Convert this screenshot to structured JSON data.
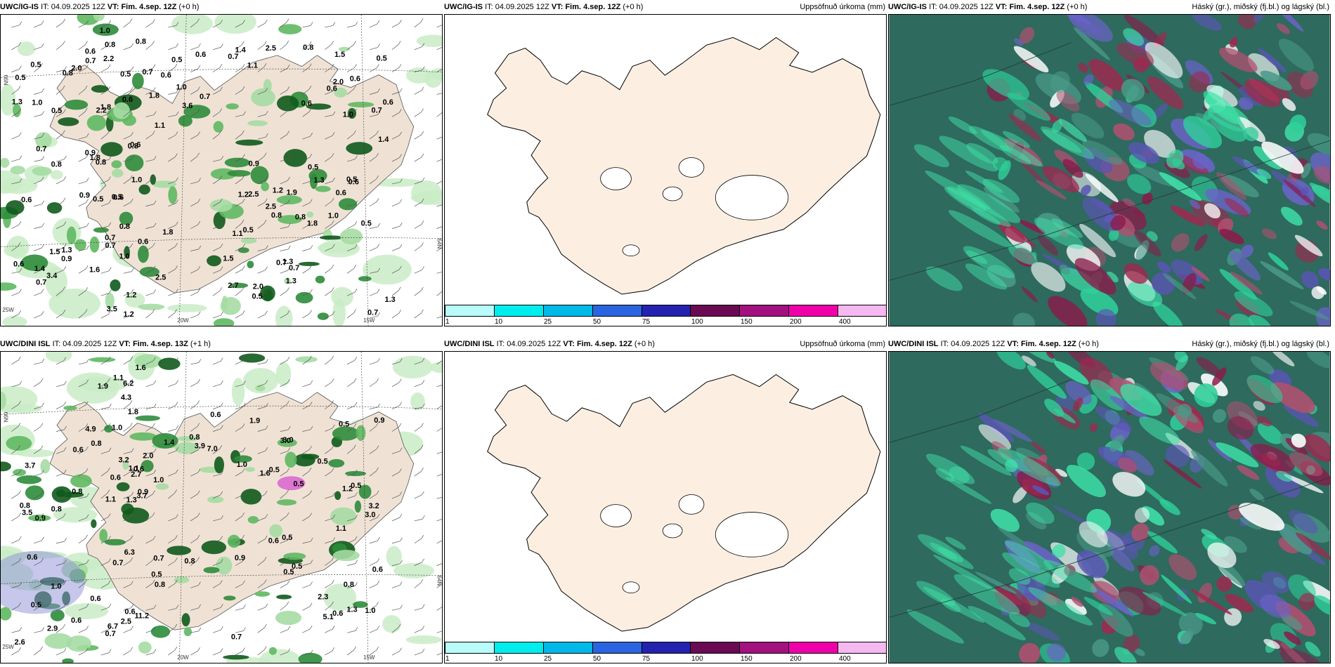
{
  "panels": [
    {
      "model": "UWC/IG-IS",
      "it_label": "IT:",
      "it_value": "04.09.2025 12Z",
      "vt_label": "VT:",
      "vt_value": "Fim. 4.sep. 12Z",
      "lead": "(+0 h)",
      "right_title": "",
      "type": "precip",
      "lat_labels": [
        "66N",
        "64N"
      ],
      "lon_labels": [
        "25W",
        "20W",
        "15W"
      ],
      "values": [
        "1.0",
        "1.0",
        "0.8",
        "1.4",
        "1.0",
        "0.5",
        "0.7",
        "0.6",
        "0.7",
        "1.3",
        "0.6",
        "0.8",
        "0.5",
        "0.6",
        "0.5",
        "1.0",
        "0.8",
        "0.5",
        "0.9",
        "0.6",
        "1.8",
        "0.7",
        "1.3",
        "0.5",
        "0.7",
        "0.8",
        "0.6",
        "3.6",
        "2.2",
        "3.4",
        "2.5",
        "2.0",
        "2.5",
        "1.2",
        "0.5",
        "1.3",
        "0.9",
        "0.5",
        "1.4",
        "1.1",
        "0.7",
        "0.6",
        "0.9",
        "0.7",
        "0.8",
        "0.8",
        "0.6",
        "0.7",
        "1.5",
        "1.2",
        "2.0",
        "1.1",
        "0.6",
        "0.7",
        "2.5",
        "0.7",
        "0.5",
        "1.2",
        "1.8",
        "1.3",
        "1.1",
        "1.8",
        "2.5",
        "1.5",
        "0.6",
        "0.8",
        "2.7",
        "0.8",
        "0.7",
        "0.5",
        "2.0",
        "1.0",
        "1.9",
        "1.2",
        "0.5",
        "0.7",
        "0.6",
        "3.5",
        "1.0",
        "2.2",
        "0.8",
        "0.6",
        "0.9",
        "1.4",
        "1.3",
        "1.5",
        "0.6",
        "1.8",
        "0.6",
        "0.5",
        "0.6",
        "0.5",
        "0.5",
        "0.6",
        "1.0",
        "1.8",
        "1.3",
        "0.7",
        "0.8",
        "1.6"
      ]
    },
    {
      "model": "UWC/IG-IS",
      "it_label": "IT:",
      "it_value": "04.09.2025 12Z",
      "vt_label": "VT:",
      "vt_value": "Fim. 4.sep. 12Z",
      "lead": "(+0 h)",
      "right_title": "Uppsöfnuð úrkoma (mm)",
      "type": "accum",
      "colorbar": {
        "colors": [
          "#b8fbfb",
          "#00eded",
          "#00b9e8",
          "#2a64e0",
          "#2323b0",
          "#6a0a52",
          "#a3107f",
          "#ef00a8",
          "#f5b8f0"
        ],
        "labels": [
          "1",
          "10",
          "25",
          "50",
          "75",
          "100",
          "150",
          "200",
          "400"
        ]
      }
    },
    {
      "model": "UWC/IG-IS",
      "it_label": "IT:",
      "it_value": "04.09.2025 12Z",
      "vt_label": "VT:",
      "vt_value": "Fim. 4.sep. 12Z",
      "lead": "(+0 h)",
      "right_title": "Háský (gr.), miðský (fj.bl.) og lágský (bl.)",
      "type": "cloud"
    },
    {
      "model": "UWC/DINI ISL",
      "it_label": "IT:",
      "it_value": "04.09.2025 12Z",
      "vt_label": "VT:",
      "vt_value": "Fim. 4.sep. 13Z",
      "lead": "(+1 h)",
      "right_title": "",
      "type": "precip",
      "lat_labels": [
        "66N",
        "64N"
      ],
      "lon_labels": [
        "25W",
        "20W",
        "15W"
      ],
      "values": [
        "0.9",
        "0.6",
        "0.5",
        "0.6",
        "0.8",
        "0.6",
        "0.9",
        "1.0",
        "0.6",
        "0.5",
        "0.5",
        "1.6",
        "1.0",
        "1.1",
        "0.6",
        "1.4",
        "0.5",
        "0.6",
        "0.5",
        "0.7",
        "0.8",
        "0.5",
        "0.8",
        "0.5",
        "1.8",
        "0.8",
        "1.0",
        "0.5",
        "1.2",
        "1.0",
        "0.7",
        "0.8",
        "1.1",
        "2.6",
        "0.7",
        "0.6",
        "0.6",
        "1.9",
        "1.3",
        "0.5",
        "2.3",
        "0.6",
        "3.2",
        "1.1",
        "1.0",
        "0.9",
        "6.3",
        "11.2",
        "3.0",
        "3.9",
        "3.2",
        "4.9",
        "5.1",
        "3.0",
        "3.5",
        "3.7",
        "4.3",
        "7.0",
        "6.7",
        "6.2",
        "2.0",
        "3.7",
        "0.8",
        "0.6",
        "0.7",
        "0.5",
        "0.6",
        "3.0",
        "0.8",
        "2.9",
        "2.7",
        "1.9",
        "1.1",
        "2.5",
        "1.6",
        "0.8",
        "1.3",
        "0.9"
      ]
    },
    {
      "model": "UWC/DINI ISL",
      "it_label": "IT:",
      "it_value": "04.09.2025 12Z",
      "vt_label": "VT:",
      "vt_value": "Fim. 4.sep. 12Z",
      "lead": "(+0 h)",
      "right_title": "Uppsöfnuð úrkoma (mm)",
      "type": "accum",
      "colorbar": {
        "colors": [
          "#b8fbfb",
          "#00eded",
          "#00b9e8",
          "#2a64e0",
          "#2323b0",
          "#6a0a52",
          "#a3107f",
          "#ef00a8",
          "#f5b8f0"
        ],
        "labels": [
          "1",
          "10",
          "25",
          "50",
          "75",
          "100",
          "150",
          "200",
          "400"
        ]
      }
    },
    {
      "model": "UWC/DINI ISL",
      "it_label": "IT:",
      "it_value": "04.09.2025 12Z",
      "vt_label": "VT:",
      "vt_value": "Fim. 4.sep. 12Z",
      "lead": "(+0 h)",
      "right_title": "Háský (gr.), miðský (fj.bl.) og lágský (bl.)",
      "type": "cloud"
    }
  ]
}
